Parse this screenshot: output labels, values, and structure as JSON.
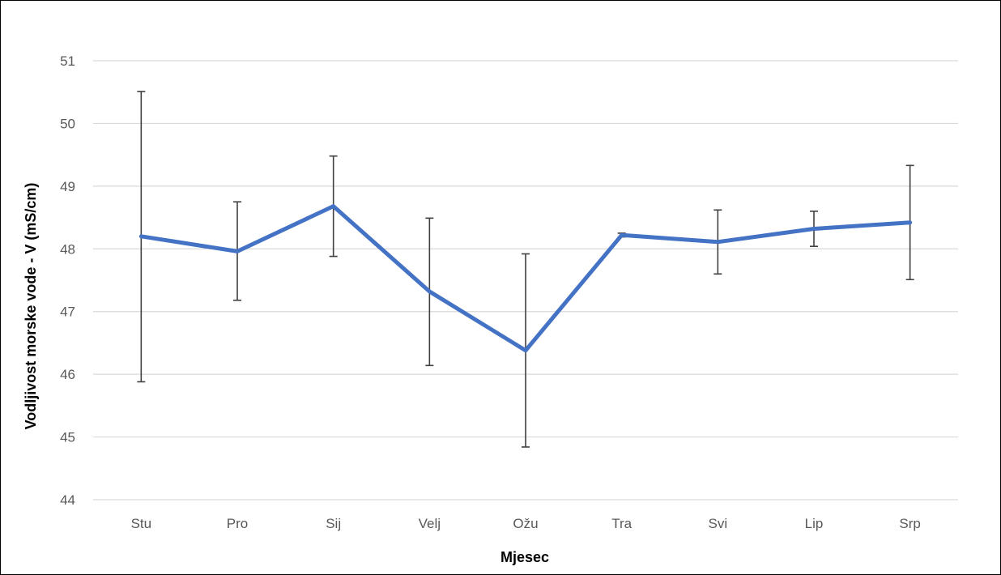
{
  "chart_data": {
    "type": "line",
    "title": "",
    "xlabel": "Mjesec",
    "ylabel": "Vodljivost morske vode - V  (mS/cm)",
    "ylim": [
      44,
      51
    ],
    "yticks": [
      44,
      45,
      46,
      47,
      48,
      49,
      50,
      51
    ],
    "categories": [
      "Stu",
      "Pro",
      "Sij",
      "Velj",
      "Ožu",
      "Tra",
      "Svi",
      "Lip",
      "Srp"
    ],
    "series": [
      {
        "values": [
          48.2,
          47.96,
          48.68,
          47.32,
          46.38,
          48.22,
          48.11,
          48.32,
          48.42
        ],
        "error_low": [
          45.88,
          47.18,
          47.88,
          46.14,
          44.84,
          48.19,
          47.6,
          48.04,
          47.51
        ],
        "error_high": [
          50.51,
          48.75,
          49.48,
          48.49,
          47.92,
          48.25,
          48.62,
          48.6,
          49.33
        ],
        "color": "#4472C4"
      }
    ],
    "grid": true,
    "legend": "none",
    "error_bar_color": "#404040",
    "grid_color": "#D9D9D9"
  }
}
